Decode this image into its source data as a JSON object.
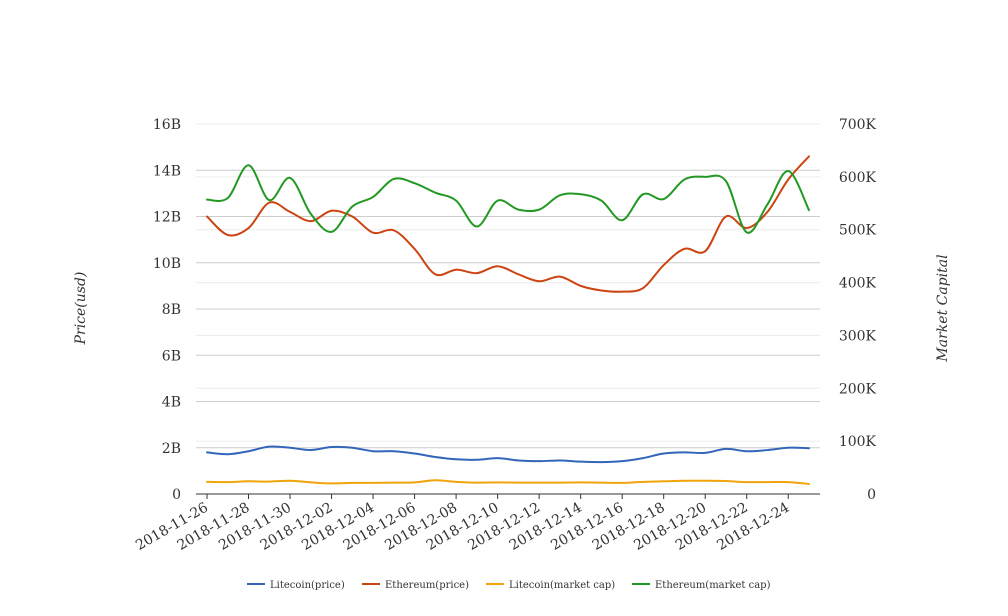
{
  "chart_data": {
    "type": "line",
    "title": "",
    "x": [
      "2018-11-26",
      "2018-11-27",
      "2018-11-28",
      "2018-11-29",
      "2018-11-30",
      "2018-12-01",
      "2018-12-02",
      "2018-12-03",
      "2018-12-04",
      "2018-12-05",
      "2018-12-06",
      "2018-12-07",
      "2018-12-08",
      "2018-12-09",
      "2018-12-10",
      "2018-12-11",
      "2018-12-12",
      "2018-12-13",
      "2018-12-14",
      "2018-12-15",
      "2018-12-16",
      "2018-12-17",
      "2018-12-18",
      "2018-12-19",
      "2018-12-20",
      "2018-12-21",
      "2018-12-22",
      "2018-12-23",
      "2018-12-24",
      "2018-12-25"
    ],
    "x_ticks": [
      "2018-11-26",
      "2018-11-28",
      "2018-11-30",
      "2018-12-02",
      "2018-12-04",
      "2018-12-06",
      "2018-12-08",
      "2018-12-10",
      "2018-12-12",
      "2018-12-14",
      "2018-12-16",
      "2018-12-18",
      "2018-12-20",
      "2018-12-22",
      "2018-12-24"
    ],
    "y_left": {
      "label": "Price(usd)",
      "lim": [
        0,
        16000000000
      ],
      "ticks": [
        0,
        2000000000,
        4000000000,
        6000000000,
        8000000000,
        10000000000,
        12000000000,
        14000000000,
        16000000000
      ],
      "tick_labels": [
        "0",
        "2B",
        "4B",
        "6B",
        "8B",
        "10B",
        "12B",
        "14B",
        "16B"
      ]
    },
    "y_right": {
      "label": "Market Capital",
      "lim": [
        0,
        700000
      ],
      "ticks": [
        0,
        100000,
        200000,
        300000,
        400000,
        500000,
        600000,
        700000
      ],
      "tick_labels": [
        "0",
        "100K",
        "200K",
        "300K",
        "400K",
        "500K",
        "600K",
        "700K"
      ]
    },
    "grid": true,
    "legend_position": "bottom",
    "series": [
      {
        "name": "Litecoin(price)",
        "color": "#3366bb",
        "axis": "left",
        "values": [
          1800000000.0,
          1720000000.0,
          1850000000.0,
          2050000000.0,
          2000000000.0,
          1900000000.0,
          2030000000.0,
          2000000000.0,
          1850000000.0,
          1850000000.0,
          1750000000.0,
          1600000000.0,
          1500000000.0,
          1480000000.0,
          1550000000.0,
          1450000000.0,
          1420000000.0,
          1450000000.0,
          1400000000.0,
          1380000000.0,
          1420000000.0,
          1550000000.0,
          1750000000.0,
          1800000000.0,
          1780000000.0,
          1950000000.0,
          1850000000.0,
          1900000000.0,
          2000000000.0,
          1980000000.0
        ]
      },
      {
        "name": "Ethereum(price)",
        "color": "#cc4411",
        "axis": "left",
        "values": [
          12000000000.0,
          11200000000.0,
          11500000000.0,
          12600000000.0,
          12200000000.0,
          11800000000.0,
          12250000000.0,
          12000000000.0,
          11300000000.0,
          11400000000.0,
          10600000000.0,
          9500000000.0,
          9700000000.0,
          9550000000.0,
          9850000000.0,
          9500000000.0,
          9200000000.0,
          9400000000.0,
          9000000000.0,
          8800000000.0,
          8750000000.0,
          8900000000.0,
          9900000000.0,
          10600000000.0,
          10500000000.0,
          12000000000.0,
          11500000000.0,
          12200000000.0,
          13600000000.0,
          14600000000.0
        ]
      },
      {
        "name": "Litecoin(market cap)",
        "color": "#f0a30a",
        "axis": "right",
        "values": [
          23000,
          22500,
          24000,
          23500,
          25000,
          22000,
          20000,
          21000,
          21000,
          21500,
          22000,
          26000,
          23000,
          21500,
          22000,
          21500,
          21500,
          21500,
          22000,
          21500,
          21000,
          23000,
          24000,
          25000,
          25000,
          24500,
          22500,
          22500,
          22500,
          19000
        ]
      },
      {
        "name": "Ethereum(market cap)",
        "color": "#229922",
        "axis": "right",
        "values": [
          557000,
          560000,
          622000,
          556000,
          598000,
          530000,
          496000,
          544000,
          562000,
          596000,
          588000,
          570000,
          555000,
          506000,
          555000,
          538000,
          538000,
          565000,
          567000,
          555000,
          518000,
          567000,
          558000,
          595000,
          600000,
          592000,
          495000,
          548000,
          611000,
          537000
        ]
      }
    ]
  }
}
